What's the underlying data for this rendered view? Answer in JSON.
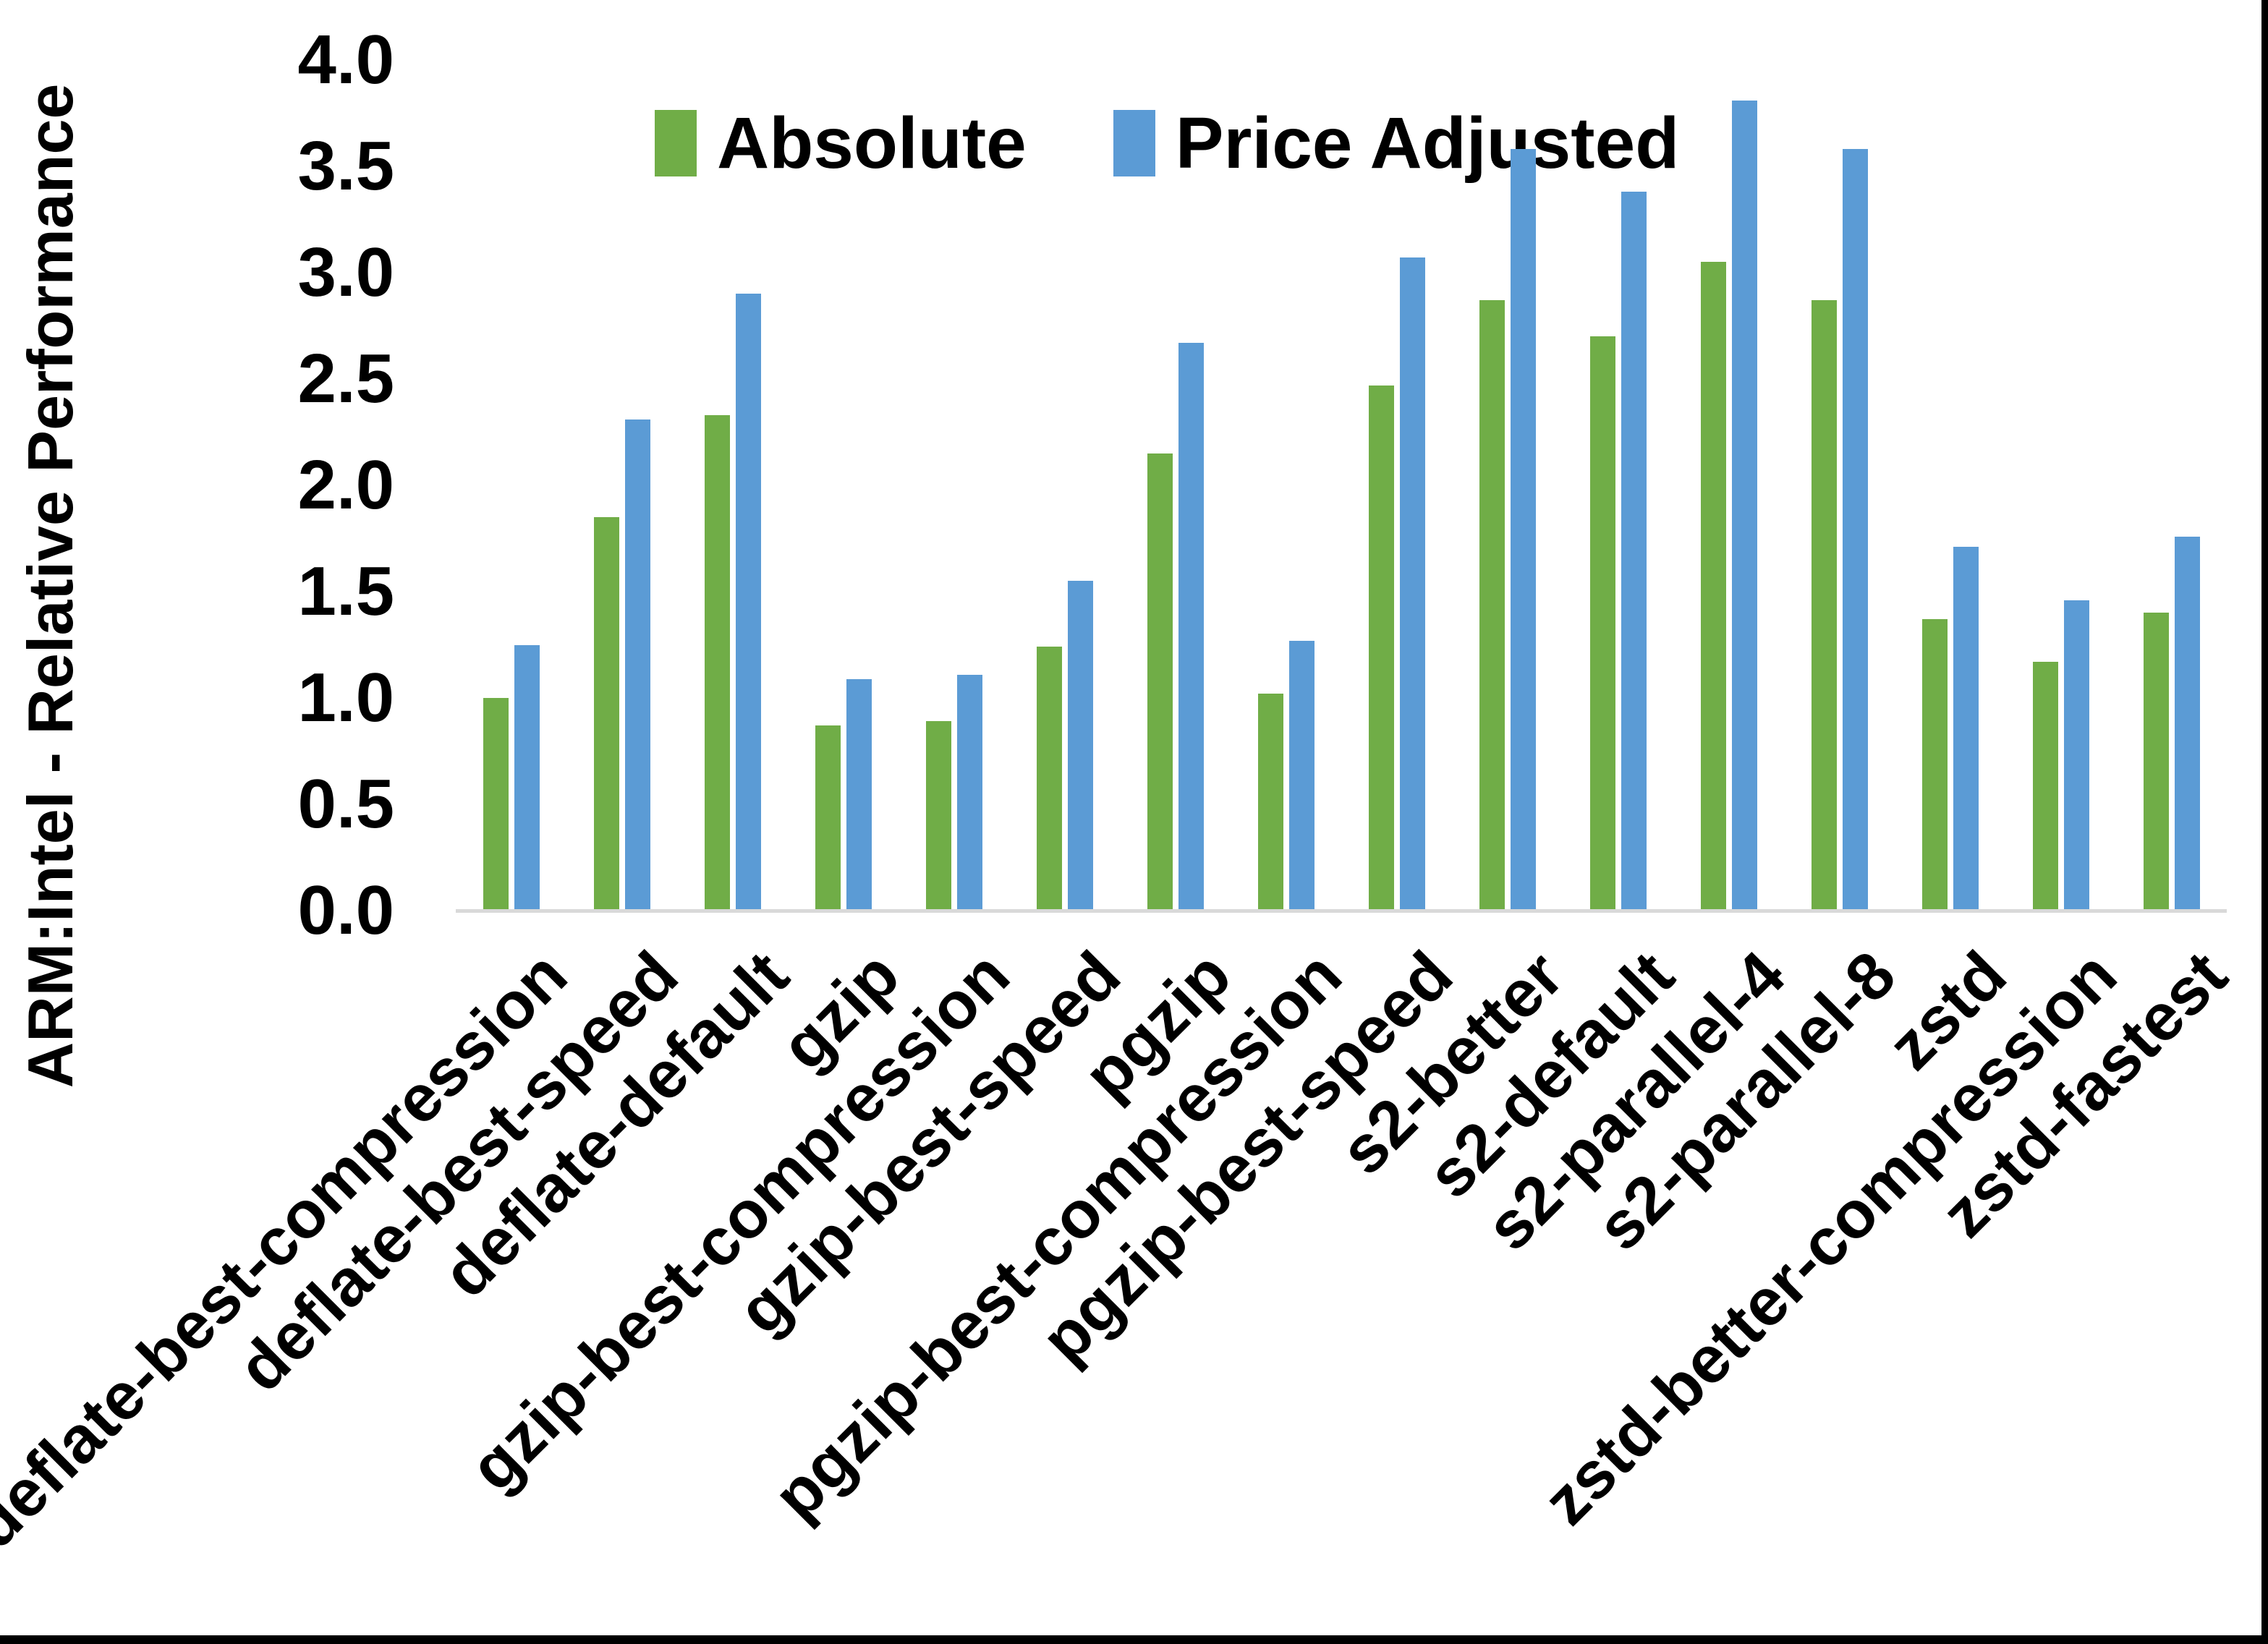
{
  "y_axis": {
    "title": "ARM:Intel - Relative Performance",
    "tick_labels": [
      "0.0",
      "0.5",
      "1.0",
      "1.5",
      "2.0",
      "2.5",
      "3.0",
      "3.5",
      "4.0"
    ]
  },
  "legend": {
    "items": [
      {
        "label": "Absolute",
        "color": "#70AD47"
      },
      {
        "label": "Price Adjusted",
        "color": "#5B9BD5"
      }
    ]
  },
  "chart_data": {
    "type": "bar",
    "title": "",
    "xlabel": "",
    "ylabel": "ARM:Intel - Relative Performance",
    "ylim": [
      0.0,
      4.0
    ],
    "ytick_step": 0.5,
    "grid": false,
    "legend_position": "top-center",
    "axis_line_color": "#D9D9D9",
    "categories": [
      "deflate-best-compression",
      "deflate-best-speed",
      "deflate-default",
      "gzip",
      "gzip-best-compression",
      "gzip-best-speed",
      "pgzip",
      "pgzip-best-compression",
      "pgzip-best-speed",
      "s2-better",
      "s2-default",
      "s2-parallel-4",
      "s2-parallel-8",
      "zstd",
      "zstd-better-compression",
      "zstd-fastest"
    ],
    "series": [
      {
        "name": "Absolute",
        "color": "#70AD47",
        "values": [
          1.0,
          1.85,
          2.33,
          0.87,
          0.89,
          1.24,
          2.15,
          1.02,
          2.47,
          2.87,
          2.7,
          3.05,
          2.87,
          1.37,
          1.17,
          1.4
        ]
      },
      {
        "name": "Price Adjusted",
        "color": "#5B9BD5",
        "values": [
          1.25,
          2.31,
          2.9,
          1.09,
          1.11,
          1.55,
          2.67,
          1.27,
          3.07,
          3.58,
          3.38,
          3.81,
          3.58,
          1.71,
          1.46,
          1.76
        ]
      }
    ]
  }
}
